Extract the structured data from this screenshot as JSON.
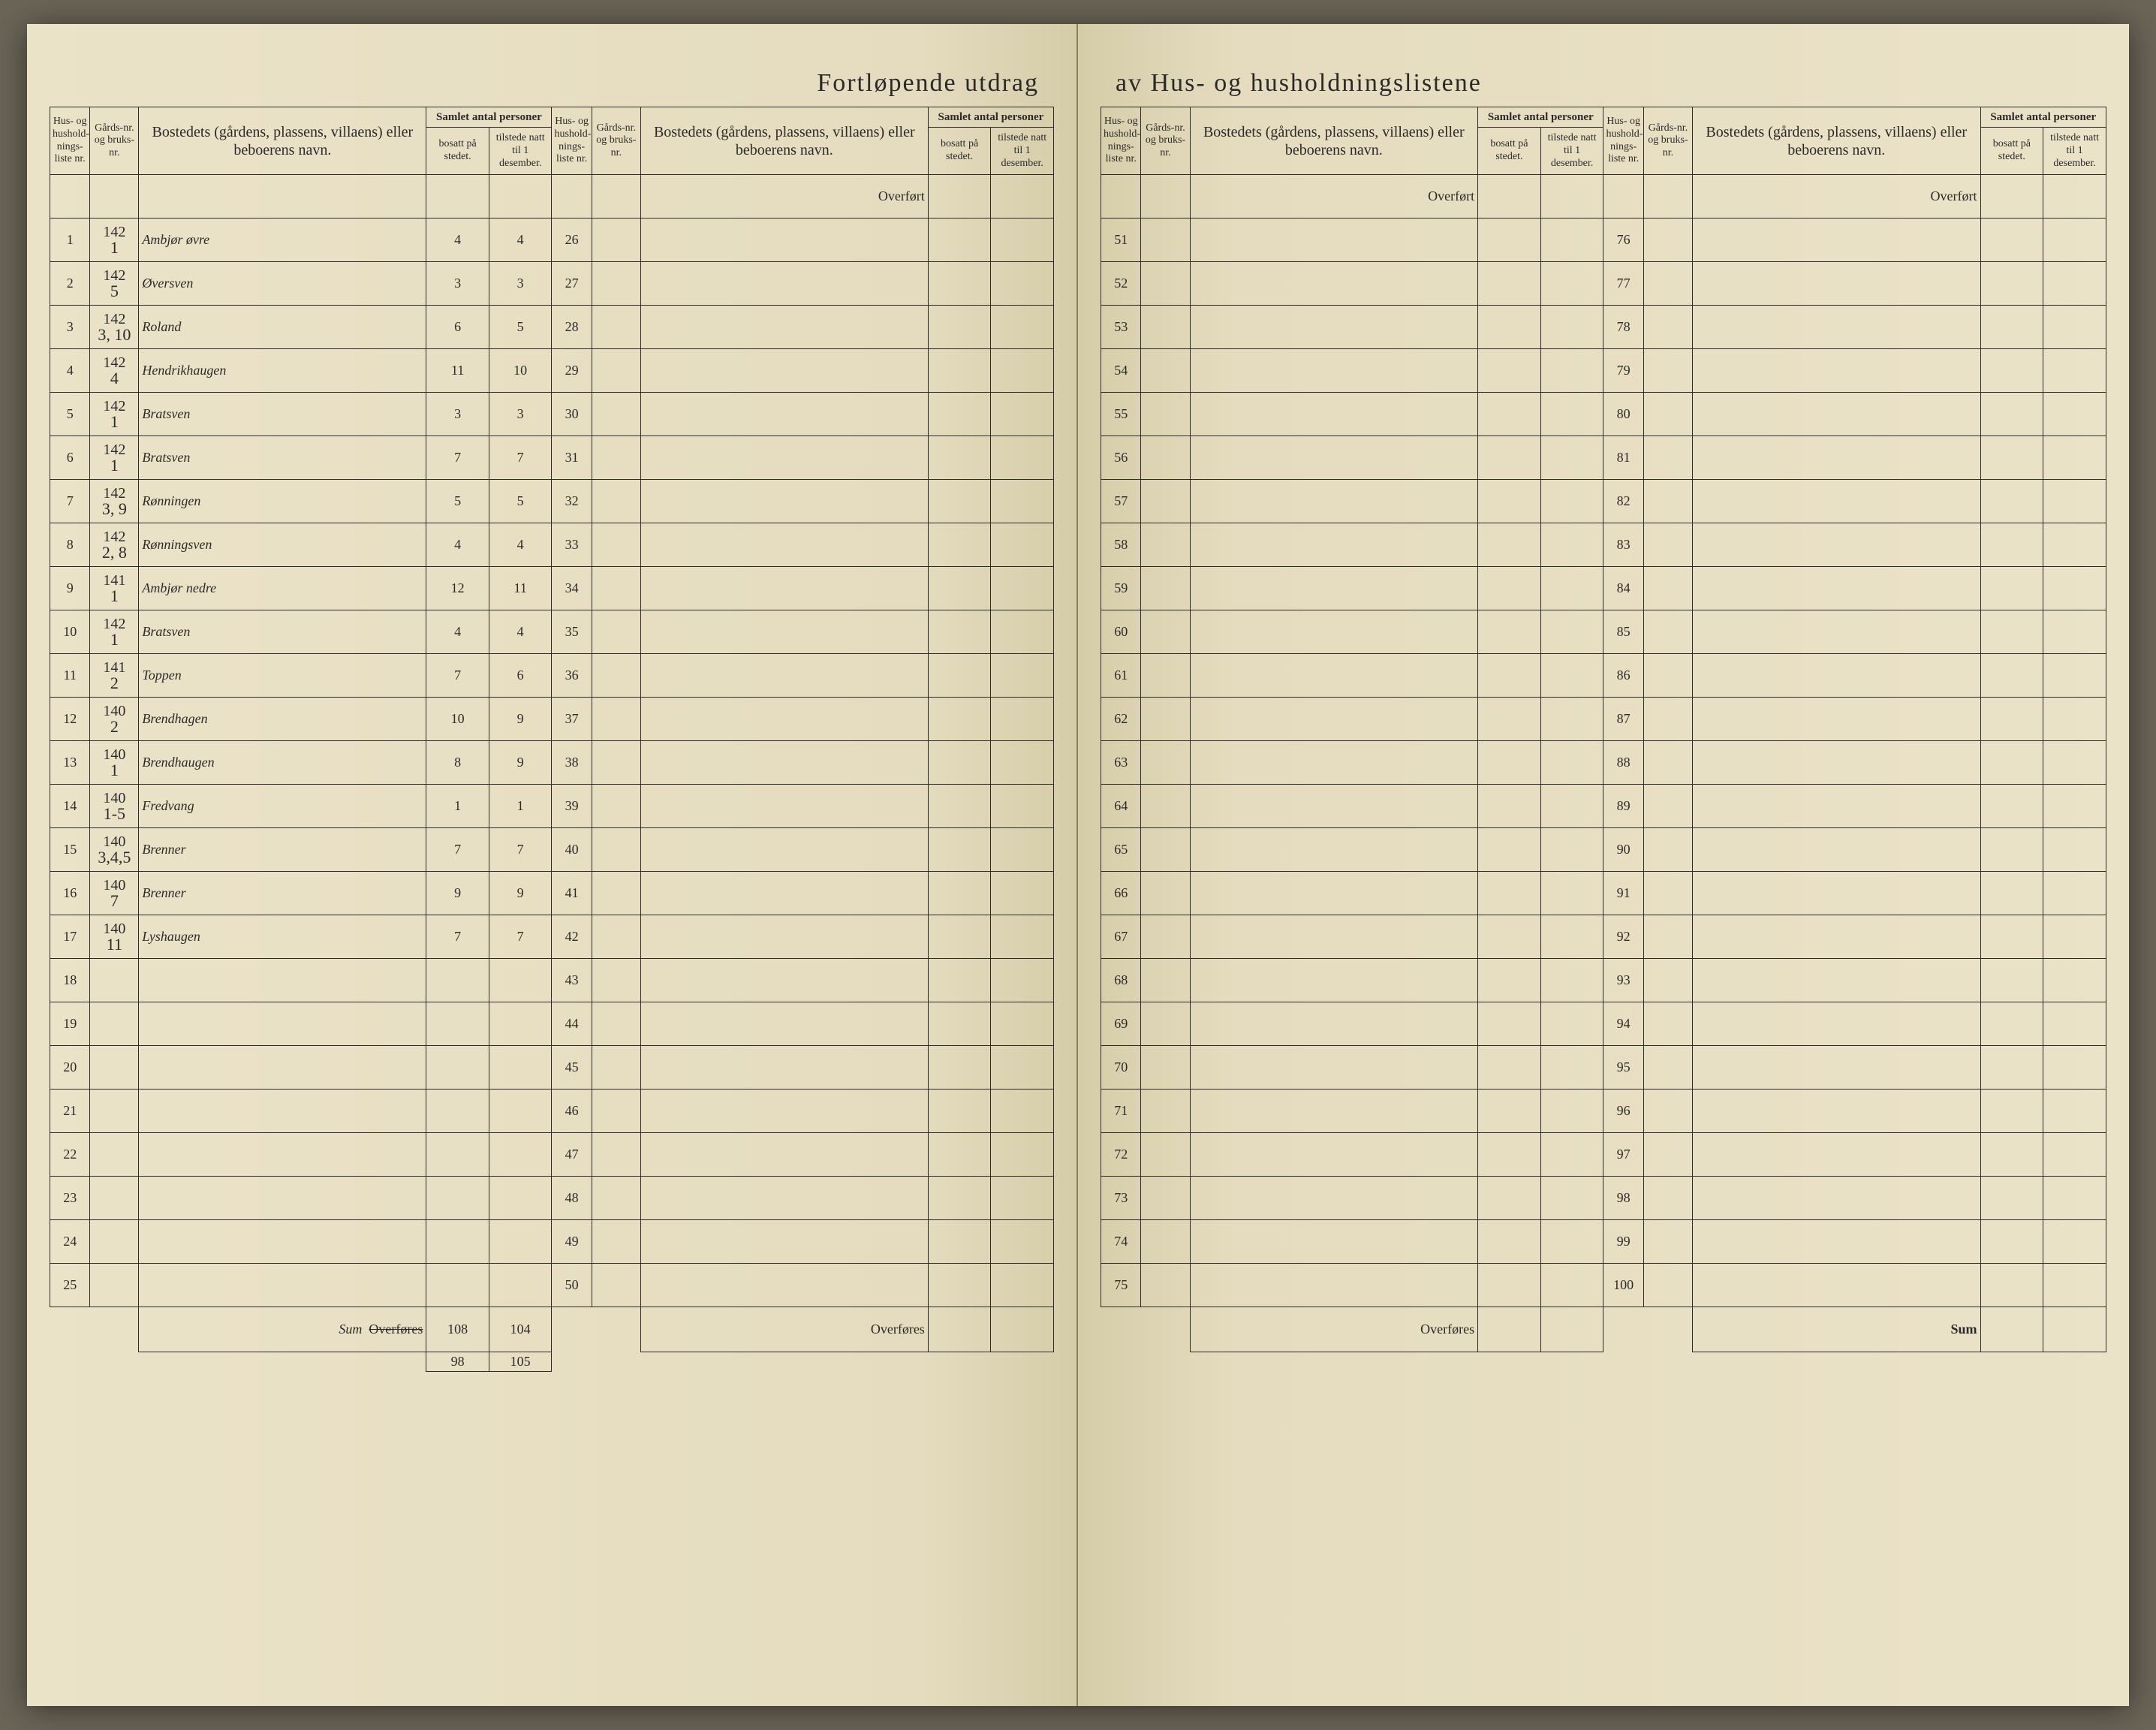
{
  "title_left": "Fortløpende utdrag",
  "title_right": "av Hus- og husholdningslistene",
  "headers": {
    "liste": "Hus- og hushold-nings-liste nr.",
    "gard": "Gårds-nr. og bruks-nr.",
    "bosted": "Bostedets (gårdens, plassens, villaens) eller beboerens navn.",
    "samlet": "Samlet antal personer",
    "bosatt": "bosatt på stedet.",
    "tilstede": "tilstede natt til 1 desember."
  },
  "overfort": "Overført",
  "overfores": "Overføres",
  "sum_label": "Sum",
  "sum_strike": "Overføres",
  "sum_handwritten": "Sum",
  "rows": [
    {
      "n": 1,
      "gard_top": "142",
      "gard_bot": "1",
      "name": "Ambjør øvre",
      "bosatt": "4",
      "tilstede": "4"
    },
    {
      "n": 2,
      "gard_top": "142",
      "gard_bot": "5",
      "name": "Øversven",
      "bosatt": "3",
      "tilstede": "3"
    },
    {
      "n": 3,
      "gard_top": "142",
      "gard_bot": "3, 10",
      "name": "Roland",
      "bosatt": "6",
      "tilstede": "5"
    },
    {
      "n": 4,
      "gard_top": "142",
      "gard_bot": "4",
      "name": "Hendrikhaugen",
      "bosatt": "11",
      "tilstede": "10"
    },
    {
      "n": 5,
      "gard_top": "142",
      "gard_bot": "1",
      "name": "Bratsven",
      "bosatt": "3",
      "tilstede": "3"
    },
    {
      "n": 6,
      "gard_top": "142",
      "gard_bot": "1",
      "name": "Bratsven",
      "bosatt": "7",
      "tilstede": "7"
    },
    {
      "n": 7,
      "gard_top": "142",
      "gard_bot": "3, 9",
      "name": "Rønningen",
      "bosatt": "5",
      "tilstede": "5"
    },
    {
      "n": 8,
      "gard_top": "142",
      "gard_bot": "2, 8",
      "name": "Rønningsven",
      "bosatt": "4",
      "tilstede": "4"
    },
    {
      "n": 9,
      "gard_top": "141",
      "gard_bot": "1",
      "name": "Ambjør nedre",
      "bosatt": "12",
      "tilstede": "11"
    },
    {
      "n": 10,
      "gard_top": "142",
      "gard_bot": "1",
      "name": "Bratsven",
      "bosatt": "4",
      "tilstede": "4"
    },
    {
      "n": 11,
      "gard_top": "141",
      "gard_bot": "2",
      "name": "Toppen",
      "bosatt": "7",
      "tilstede": "6"
    },
    {
      "n": 12,
      "gard_top": "140",
      "gard_bot": "2",
      "name": "Brendhagen",
      "bosatt": "10",
      "tilstede": "9"
    },
    {
      "n": 13,
      "gard_top": "140",
      "gard_bot": "1",
      "name": "Brendhaugen",
      "bosatt": "8",
      "tilstede": "9"
    },
    {
      "n": 14,
      "gard_top": "140",
      "gard_bot": "1-5",
      "name": "Fredvang",
      "bosatt": "1",
      "tilstede": "1"
    },
    {
      "n": 15,
      "gard_top": "140",
      "gard_bot": "3,4,5",
      "name": "Brenner",
      "bosatt": "7",
      "tilstede": "7"
    },
    {
      "n": 16,
      "gard_top": "140",
      "gard_bot": "7",
      "name": "Brenner",
      "bosatt": "9",
      "tilstede": "9"
    },
    {
      "n": 17,
      "gard_top": "140",
      "gard_bot": "11",
      "name": "Lyshaugen",
      "bosatt": "7",
      "tilstede": "7"
    }
  ],
  "empty_rows_half1_start": 18,
  "empty_rows_half1_end": 25,
  "half2_start": 26,
  "half2_end": 50,
  "half3_start": 51,
  "half3_end": 75,
  "half4_start": 76,
  "half4_end": 100,
  "totals": {
    "bosatt": "108",
    "tilstede": "104",
    "bosatt2": "98",
    "tilstede2": "105"
  },
  "colors": {
    "paper": "#e8e0c5",
    "ink": "#1a1a1a",
    "print": "#2a2a2a",
    "border": "#2a2a2a"
  }
}
